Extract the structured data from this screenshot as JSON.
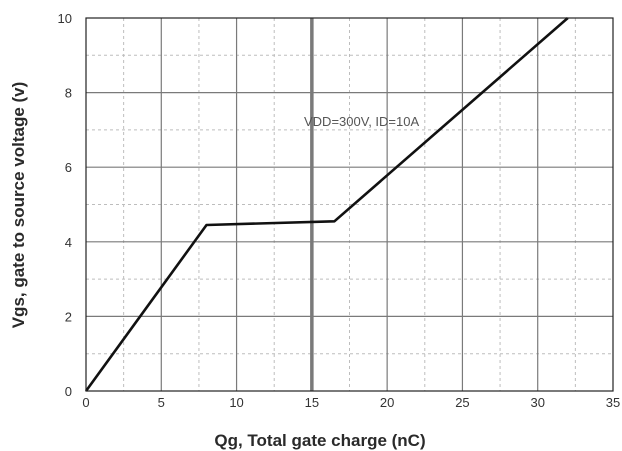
{
  "chart_data": {
    "type": "line",
    "title": "",
    "xlabel": "Qg, Total gate charge (nC)",
    "ylabel": "Vgs, gate to source voltage (v)",
    "xlim": [
      0,
      35
    ],
    "ylim": [
      0,
      10
    ],
    "xticks": [
      0,
      5,
      10,
      15,
      20,
      25,
      30,
      35
    ],
    "yticks": [
      0,
      2,
      4,
      6,
      8,
      10
    ],
    "grid": true,
    "series": [
      {
        "x": [
          0,
          8,
          16.5,
          32
        ],
        "y": [
          0,
          4.45,
          4.55,
          10
        ]
      }
    ],
    "annotations": [
      {
        "text": "VDD=300V, ID=10A",
        "x": 24.5,
        "y": 7.4
      }
    ],
    "colors": {
      "line": "#111111",
      "grid": "#7a7a7a",
      "grid_minor": "#bdbdbd",
      "axes": "#222222"
    }
  }
}
